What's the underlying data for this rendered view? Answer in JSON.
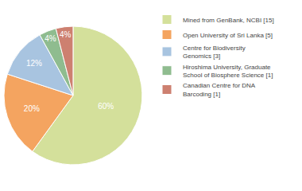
{
  "chart_data": {
    "type": "pie",
    "categories": [
      "Mined from GenBank, NCBI [15]",
      "Open University of Sri Lanka [5]",
      "Centre for Biodiversity\nGenomics [3]",
      "Hiroshima University, Graduate\nSchool of Biosphere Science [1]",
      "Canadian Centre for DNA\nBarcoding [1]"
    ],
    "values": [
      60,
      20,
      12,
      4,
      4
    ],
    "value_labels": [
      "60%",
      "20%",
      "12%",
      "4%",
      "4%"
    ],
    "colors": [
      "#d4e09b",
      "#f4a460",
      "#a8c4e0",
      "#8fbc8f",
      "#cd8070"
    ],
    "data_labels": true,
    "legend": "right"
  }
}
